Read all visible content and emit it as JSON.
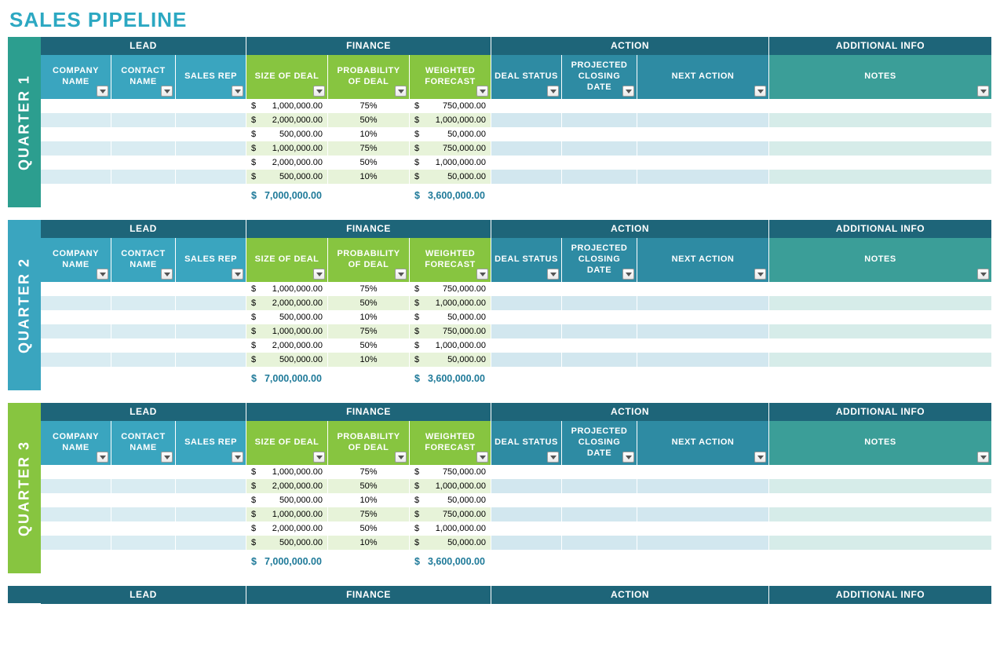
{
  "title": "SALES PIPELINE",
  "colors": {
    "page_bg": "#ffffff",
    "title": "#2ca8c2",
    "group_bg": "#1e6579",
    "lead_hdr_bg": "#3aa5bf",
    "finance_hdr_bg": "#87c540",
    "action_hdr_bg": "#2e8ba3",
    "notes_hdr_bg": "#3b9e98",
    "lead_cell_even": "#ffffff",
    "lead_cell_odd": "#d9ecf2",
    "finance_cell_even": "#ffffff",
    "finance_cell_odd": "#e7f3d9",
    "action_cell_even": "#ffffff",
    "action_cell_odd": "#d2e7ef",
    "notes_cell_even": "#ffffff",
    "notes_cell_odd": "#d6ece9",
    "totals_text": "#1f7a99",
    "q1_tab": "#2c9e8f",
    "q2_tab": "#3aa5bf",
    "q3_tab": "#87c540",
    "q4_tab": "#1e6579"
  },
  "groups": [
    {
      "key": "lead",
      "label": "LEAD",
      "class": "g-lead"
    },
    {
      "key": "finance",
      "label": "FINANCE",
      "class": "g-finance"
    },
    {
      "key": "action",
      "label": "ACTION",
      "class": "g-action"
    },
    {
      "key": "additional",
      "label": "ADDITIONAL INFO",
      "class": "g-additional"
    }
  ],
  "columns": [
    {
      "key": "company",
      "label": "COMPANY NAME",
      "group": "lead",
      "class": "c-company",
      "hdr_bg": "lead_hdr_bg",
      "odd_bg": "lead_cell_odd",
      "even_bg": "lead_cell_even",
      "type": "text"
    },
    {
      "key": "contact",
      "label": "CONTACT NAME",
      "group": "lead",
      "class": "c-contact",
      "hdr_bg": "lead_hdr_bg",
      "odd_bg": "lead_cell_odd",
      "even_bg": "lead_cell_even",
      "type": "text"
    },
    {
      "key": "rep",
      "label": "SALES REP",
      "group": "lead",
      "class": "c-rep",
      "hdr_bg": "lead_hdr_bg",
      "odd_bg": "lead_cell_odd",
      "even_bg": "lead_cell_even",
      "type": "text"
    },
    {
      "key": "size",
      "label": "SIZE OF DEAL",
      "group": "finance",
      "class": "c-size",
      "hdr_bg": "finance_hdr_bg",
      "odd_bg": "finance_cell_odd",
      "even_bg": "finance_cell_even",
      "type": "money"
    },
    {
      "key": "prob",
      "label": "PROBABILITY OF DEAL",
      "group": "finance",
      "class": "c-prob",
      "hdr_bg": "finance_hdr_bg",
      "odd_bg": "finance_cell_odd",
      "even_bg": "finance_cell_even",
      "type": "pct"
    },
    {
      "key": "fore",
      "label": "WEIGHTED FORECAST",
      "group": "finance",
      "class": "c-fore",
      "hdr_bg": "finance_hdr_bg",
      "odd_bg": "finance_cell_odd",
      "even_bg": "finance_cell_even",
      "type": "money"
    },
    {
      "key": "status",
      "label": "DEAL STATUS",
      "group": "action",
      "class": "c-status",
      "hdr_bg": "action_hdr_bg",
      "odd_bg": "action_cell_odd",
      "even_bg": "action_cell_even",
      "type": "text"
    },
    {
      "key": "close",
      "label": "PROJECTED CLOSING DATE",
      "group": "action",
      "class": "c-close",
      "hdr_bg": "action_hdr_bg",
      "odd_bg": "action_cell_odd",
      "even_bg": "action_cell_even",
      "type": "text"
    },
    {
      "key": "action",
      "label": "NEXT ACTION",
      "group": "action",
      "class": "c-action",
      "hdr_bg": "action_hdr_bg",
      "odd_bg": "action_cell_odd",
      "even_bg": "action_cell_even",
      "type": "text"
    },
    {
      "key": "notes",
      "label": "NOTES",
      "group": "additional",
      "class": "c-notes",
      "hdr_bg": "notes_hdr_bg",
      "odd_bg": "notes_cell_odd",
      "even_bg": "notes_cell_even",
      "type": "text"
    }
  ],
  "quarters": [
    {
      "key": "q1",
      "label": "QUARTER 1",
      "tab_color": "q1_tab",
      "rows": [
        {
          "size": "1,000,000.00",
          "prob": "75%",
          "fore": "750,000.00"
        },
        {
          "size": "2,000,000.00",
          "prob": "50%",
          "fore": "1,000,000.00"
        },
        {
          "size": "500,000.00",
          "prob": "10%",
          "fore": "50,000.00"
        },
        {
          "size": "1,000,000.00",
          "prob": "75%",
          "fore": "750,000.00"
        },
        {
          "size": "2,000,000.00",
          "prob": "50%",
          "fore": "1,000,000.00"
        },
        {
          "size": "500,000.00",
          "prob": "10%",
          "fore": "50,000.00"
        }
      ],
      "totals": {
        "size": "7,000,000.00",
        "fore": "3,600,000.00"
      }
    },
    {
      "key": "q2",
      "label": "QUARTER 2",
      "tab_color": "q2_tab",
      "rows": [
        {
          "size": "1,000,000.00",
          "prob": "75%",
          "fore": "750,000.00"
        },
        {
          "size": "2,000,000.00",
          "prob": "50%",
          "fore": "1,000,000.00"
        },
        {
          "size": "500,000.00",
          "prob": "10%",
          "fore": "50,000.00"
        },
        {
          "size": "1,000,000.00",
          "prob": "75%",
          "fore": "750,000.00"
        },
        {
          "size": "2,000,000.00",
          "prob": "50%",
          "fore": "1,000,000.00"
        },
        {
          "size": "500,000.00",
          "prob": "10%",
          "fore": "50,000.00"
        }
      ],
      "totals": {
        "size": "7,000,000.00",
        "fore": "3,600,000.00"
      }
    },
    {
      "key": "q3",
      "label": "QUARTER 3",
      "tab_color": "q3_tab",
      "rows": [
        {
          "size": "1,000,000.00",
          "prob": "75%",
          "fore": "750,000.00"
        },
        {
          "size": "2,000,000.00",
          "prob": "50%",
          "fore": "1,000,000.00"
        },
        {
          "size": "500,000.00",
          "prob": "10%",
          "fore": "50,000.00"
        },
        {
          "size": "1,000,000.00",
          "prob": "75%",
          "fore": "750,000.00"
        },
        {
          "size": "2,000,000.00",
          "prob": "50%",
          "fore": "1,000,000.00"
        },
        {
          "size": "500,000.00",
          "prob": "10%",
          "fore": "50,000.00"
        }
      ],
      "totals": {
        "size": "7,000,000.00",
        "fore": "3,600,000.00"
      }
    }
  ],
  "stub_quarter": {
    "key": "q4",
    "tab_color": "q4_tab"
  }
}
